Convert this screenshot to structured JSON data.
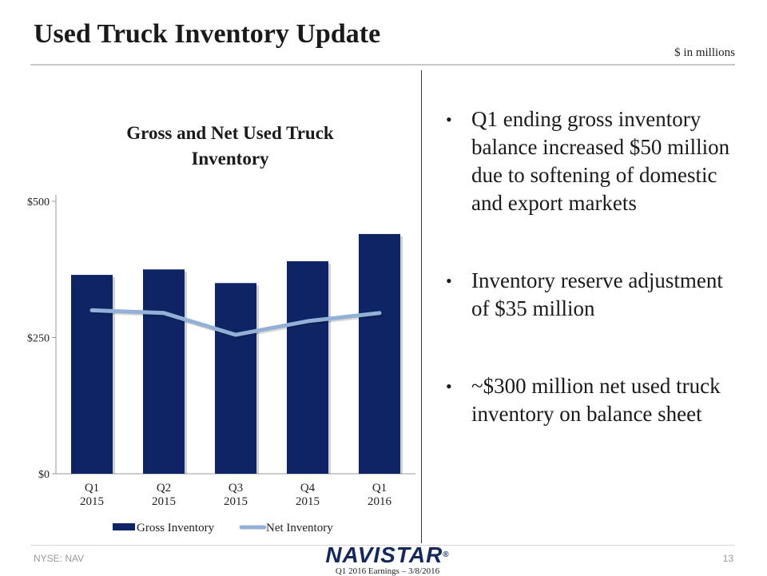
{
  "slide": {
    "title": "Used Truck Inventory Update",
    "units_note": "$ in millions",
    "page_number": "13"
  },
  "bullets": [
    "Q1 ending gross inventory balance increased $50 million due to softening of domestic and export markets",
    "Inventory reserve adjustment of $35 million",
    "~$300 million net used truck inventory on balance sheet"
  ],
  "footer": {
    "ticker": "NYSE: NAV",
    "logo_text": "NAVISTAR",
    "registered_mark": "®",
    "caption": "Q1 2016 Earnings – 3/8/2016"
  },
  "chart_data": {
    "type": "bar",
    "title_lines": [
      "Gross and Net Used Truck",
      "Inventory"
    ],
    "categories": [
      [
        "Q1",
        "2015"
      ],
      [
        "Q2",
        "2015"
      ],
      [
        "Q3",
        "2015"
      ],
      [
        "Q4",
        "2015"
      ],
      [
        "Q1",
        "2016"
      ]
    ],
    "series": [
      {
        "name": "Gross Inventory",
        "type": "bar",
        "values": [
          365,
          375,
          350,
          390,
          440
        ],
        "color": "#0f2464"
      },
      {
        "name": "Net Inventory",
        "type": "line",
        "values": [
          300,
          295,
          255,
          280,
          295
        ],
        "color": "#93b0d6"
      }
    ],
    "ylim": [
      0,
      500
    ],
    "yticks": [
      0,
      250,
      500
    ],
    "ytick_labels": [
      "$0",
      "$250",
      "$500"
    ],
    "legend_position": "bottom"
  }
}
